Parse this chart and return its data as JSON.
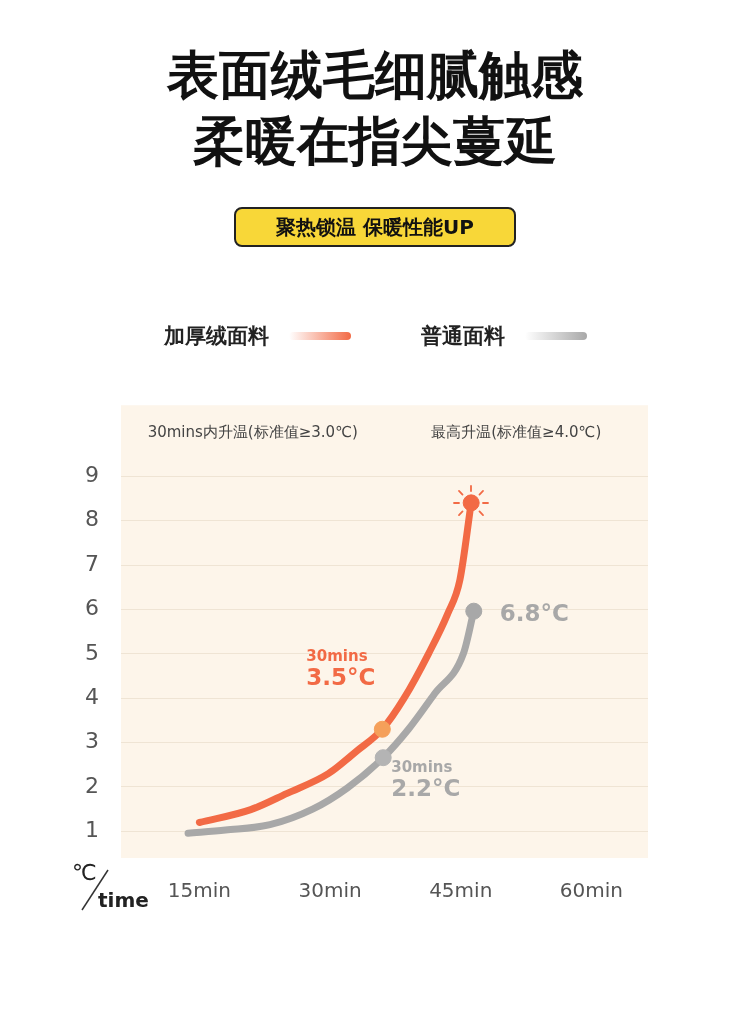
{
  "chart_data": {
    "type": "line",
    "title": "表面绒毛细腻触感柔暖在指尖蔓延",
    "subtitle": "聚热锁温 保暖性能UP",
    "xlabel": "time",
    "ylabel": "℃",
    "xlim": [
      6,
      66.5
    ],
    "xticks": [
      {
        "value": 15,
        "label": "15min"
      },
      {
        "value": 30,
        "label": "30min"
      },
      {
        "value": 45,
        "label": "45min"
      },
      {
        "value": 60,
        "label": "60min"
      }
    ],
    "ylim": [
      0.4,
      10.6
    ],
    "yticks": [
      1,
      2,
      3,
      4,
      5,
      6,
      7,
      8,
      9
    ],
    "grid": "y",
    "legend": "top",
    "marker": "none",
    "line_style": "solid",
    "series": [
      {
        "name": "加厚绒面料",
        "color": "#f26a45",
        "x": [
          15,
          20.9,
          25,
          29.8,
          33,
          36.0,
          38.5,
          41.3,
          43.5,
          44.9,
          46.2
        ],
        "values": [
          1.2,
          1.49,
          1.85,
          2.3,
          2.8,
          3.3,
          4.0,
          5.0,
          5.9,
          6.66,
          8.4
        ]
      },
      {
        "name": "普通面料",
        "color": "#a8a8a8",
        "x": [
          13.7,
          18,
          23.1,
          28,
          32,
          36.1,
          39,
          42,
          45.3,
          46.5
        ],
        "values": [
          0.96,
          1.03,
          1.15,
          1.5,
          1.98,
          2.66,
          3.3,
          4.1,
          5.0,
          5.96
        ]
      },
      {
        "type": "scatter",
        "marker": "circle",
        "x": [
          36.0,
          46.2
        ],
        "values": [
          3.3,
          8.4
        ],
        "colors": [
          "#f5a05a",
          "#f26a45"
        ]
      },
      {
        "type": "scatter",
        "marker": "circle",
        "x": [
          36.1,
          46.5
        ],
        "values": [
          2.66,
          5.96
        ],
        "colors": [
          "#b4b4b4",
          "#a8a8a8"
        ]
      }
    ],
    "annotations": [
      "30mins内升温(标准值≥3.0℃)",
      "最高升温(标准值≥4.0℃)",
      {
        "text": "30mins\n3.5°C",
        "x": 36.0,
        "y": 3.3
      },
      {
        "text": "30mins\n2.2°C",
        "x": 36.1,
        "y": 2.66
      },
      {
        "text": "6.8°C",
        "x": 46.5,
        "y": 5.96
      }
    ]
  }
}
